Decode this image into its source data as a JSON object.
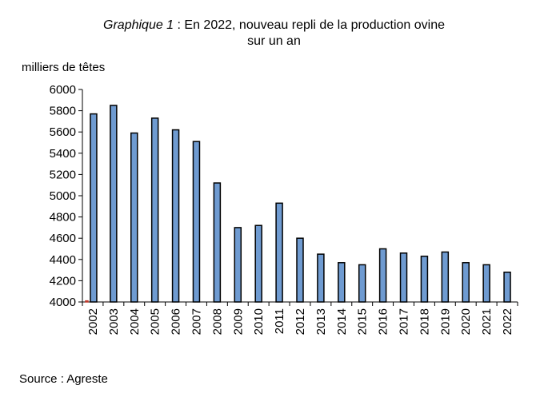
{
  "title": {
    "prefix": "Graphique 1",
    "line1": " : En 2022, nouveau repli de la production ovine",
    "line2": "sur un an"
  },
  "source": "Source : Agreste",
  "colors": {
    "bar_fill": "#6f9bd1",
    "bar_stroke": "#000000",
    "first_bar_mark": "#c0392b"
  },
  "chart_data": {
    "type": "bar",
    "ylabel": "milliers de têtes",
    "xlabel": "",
    "ylim": [
      4000,
      6000
    ],
    "yticks": [
      4000,
      4200,
      4400,
      4600,
      4800,
      5000,
      5200,
      5400,
      5600,
      5800,
      6000
    ],
    "grid": false,
    "categories": [
      "2002",
      "2003",
      "2004",
      "2005",
      "2006",
      "2007",
      "2008",
      "2009",
      "2010",
      "2011",
      "2012",
      "2013",
      "2014",
      "2015",
      "2016",
      "2017",
      "2018",
      "2019",
      "2020",
      "2021",
      "2022"
    ],
    "series": [
      {
        "values": [
          4010,
          5850,
          5590,
          5730,
          5620,
          5510,
          5120,
          4700,
          4720,
          4930,
          4600,
          4450,
          4370,
          4350,
          4500,
          4460,
          4430,
          4470,
          4370,
          4350,
          4280
        ]
      },
      {
        "values": [
          5770,
          null,
          null,
          null,
          null,
          null,
          null,
          null,
          null,
          null,
          null,
          null,
          null,
          null,
          null,
          null,
          null,
          null,
          null,
          null,
          null
        ]
      }
    ]
  }
}
